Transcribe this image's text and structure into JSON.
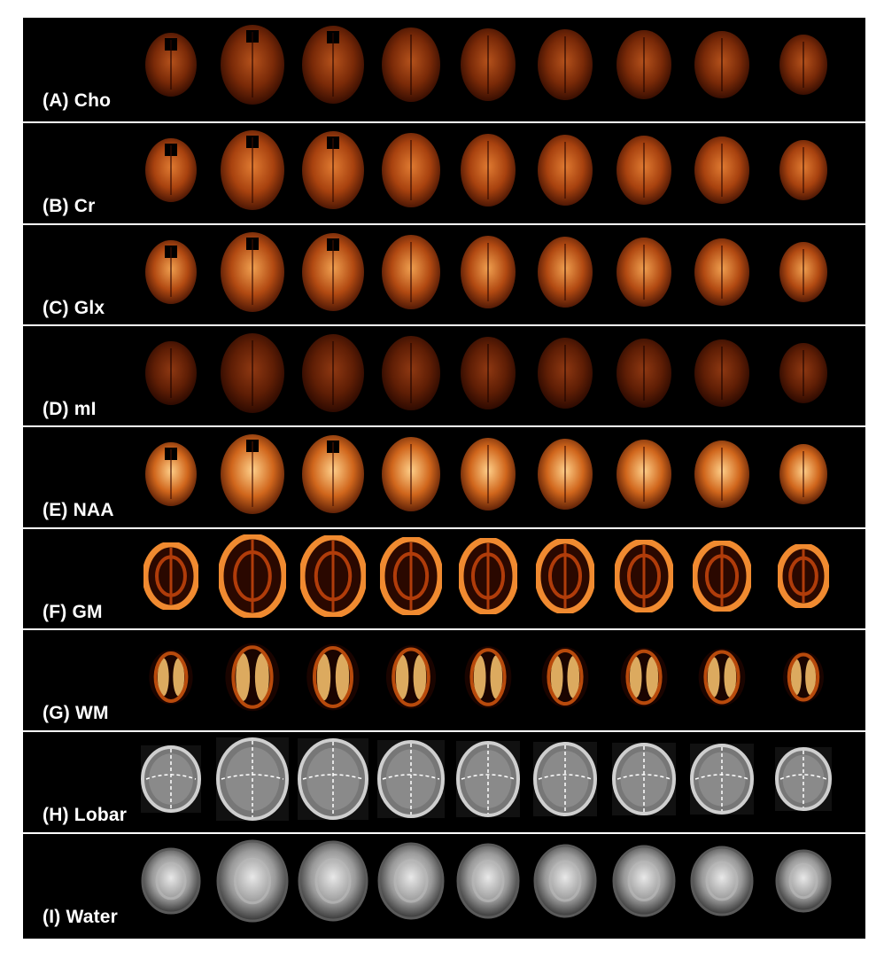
{
  "figure": {
    "rows": [
      {
        "id": "cho",
        "label": "(A) Cho",
        "style": "hot",
        "brightness": 0.45,
        "colors": [
          "#2a0800",
          "#7a2a08",
          "#b5521c"
        ]
      },
      {
        "id": "cr",
        "label": "(B) Cr",
        "style": "hot",
        "brightness": 0.6,
        "colors": [
          "#3a0e02",
          "#a8420f",
          "#e07b32"
        ]
      },
      {
        "id": "glx",
        "label": "(C) Glx",
        "style": "hot",
        "brightness": 0.65,
        "colors": [
          "#3d0f03",
          "#b24a12",
          "#f0a050"
        ]
      },
      {
        "id": "mi",
        "label": "(D) mI",
        "style": "hot",
        "brightness": 0.35,
        "colors": [
          "#230600",
          "#5f1e05",
          "#8e3812"
        ]
      },
      {
        "id": "naa",
        "label": "(E) NAA",
        "style": "hot",
        "brightness": 0.85,
        "colors": [
          "#4a1403",
          "#d0661c",
          "#ffd08a"
        ]
      },
      {
        "id": "gm",
        "label": "(F) GM",
        "style": "ring",
        "brightness": 0.7,
        "colors": [
          "#3c0c00",
          "#b03c0a",
          "#f08a30"
        ]
      },
      {
        "id": "wm",
        "label": "(G) WM",
        "style": "wm",
        "brightness": 0.8,
        "colors": [
          "#1a0400",
          "#b84a0c",
          "#ffc870"
        ]
      },
      {
        "id": "lobar",
        "label": "(H) Lobar",
        "style": "gray",
        "brightness": 0.55,
        "colors": [
          "#1a1a1a",
          "#6e6e6e",
          "#c8c8c8"
        ]
      },
      {
        "id": "water",
        "label": "(I) Water",
        "style": "water",
        "brightness": 0.75,
        "colors": [
          "#202020",
          "#9a9a9a",
          "#e8e8e8"
        ]
      }
    ],
    "slices_per_row": 9
  }
}
